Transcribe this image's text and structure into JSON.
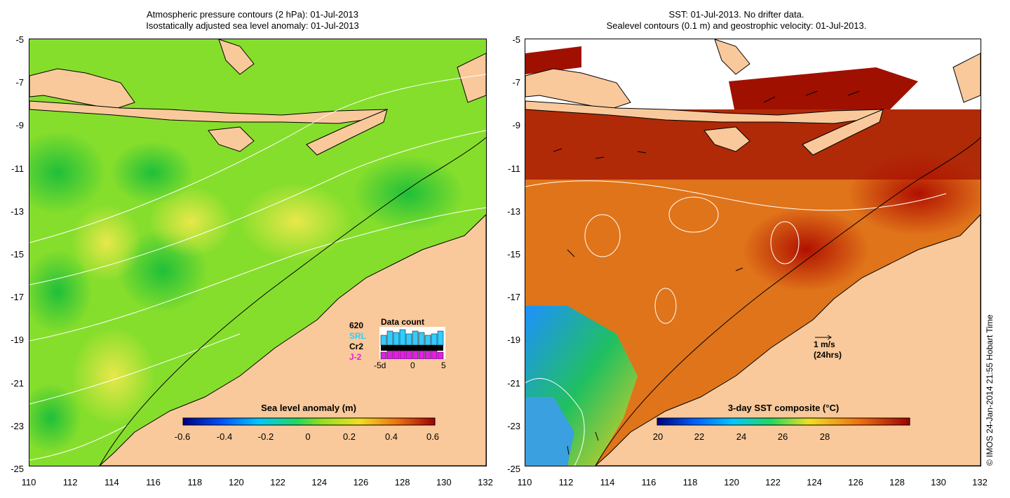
{
  "left": {
    "title_line1": "Atmospheric pressure contours (2 hPa): 01-Jul-2013",
    "title_line2": "Isostatically adjusted sea level anomaly: 01-Jul-2013",
    "colorbar_label": "Sea level anomaly (m)",
    "colorbar_ticks": [
      "-0.6",
      "-0.4",
      "-0.2",
      "0",
      "0.2",
      "0.4",
      "0.6"
    ]
  },
  "right": {
    "title_line1": "SST: 01-Jul-2013. No drifter data.",
    "title_line2": "Sealevel contours (0.1 m) and geostrophic velocity: 01-Jul-2013.",
    "colorbar_label": "3-day SST composite (°C)",
    "colorbar_ticks": [
      "20",
      "22",
      "24",
      "26",
      "28"
    ],
    "scale_arrow_label1": "1 m/s",
    "scale_arrow_label2": "(24hrs)"
  },
  "axes": {
    "lat_ticks": [
      "-5",
      "-7",
      "-9",
      "-11",
      "-13",
      "-15",
      "-17",
      "-19",
      "-21",
      "-23",
      "-25"
    ],
    "lon_ticks": [
      "110",
      "112",
      "114",
      "116",
      "118",
      "120",
      "122",
      "124",
      "126",
      "128",
      "130",
      "132"
    ]
  },
  "data_count": {
    "title": "Data count",
    "sat1": "620",
    "sat2": "SRL",
    "sat3": "Cr2",
    "sat4": "J-2",
    "x_ticks": [
      "-5d",
      "0",
      "5"
    ]
  },
  "credit": "© IMOS 24-Jan-2014 21:55 Hobart Time",
  "colors": {
    "land": "#f9c99b",
    "sla_ocean": "#7fe02a",
    "sst_ocean": "#e8760f",
    "srl": "#33ccff",
    "j2": "#e020e0"
  }
}
